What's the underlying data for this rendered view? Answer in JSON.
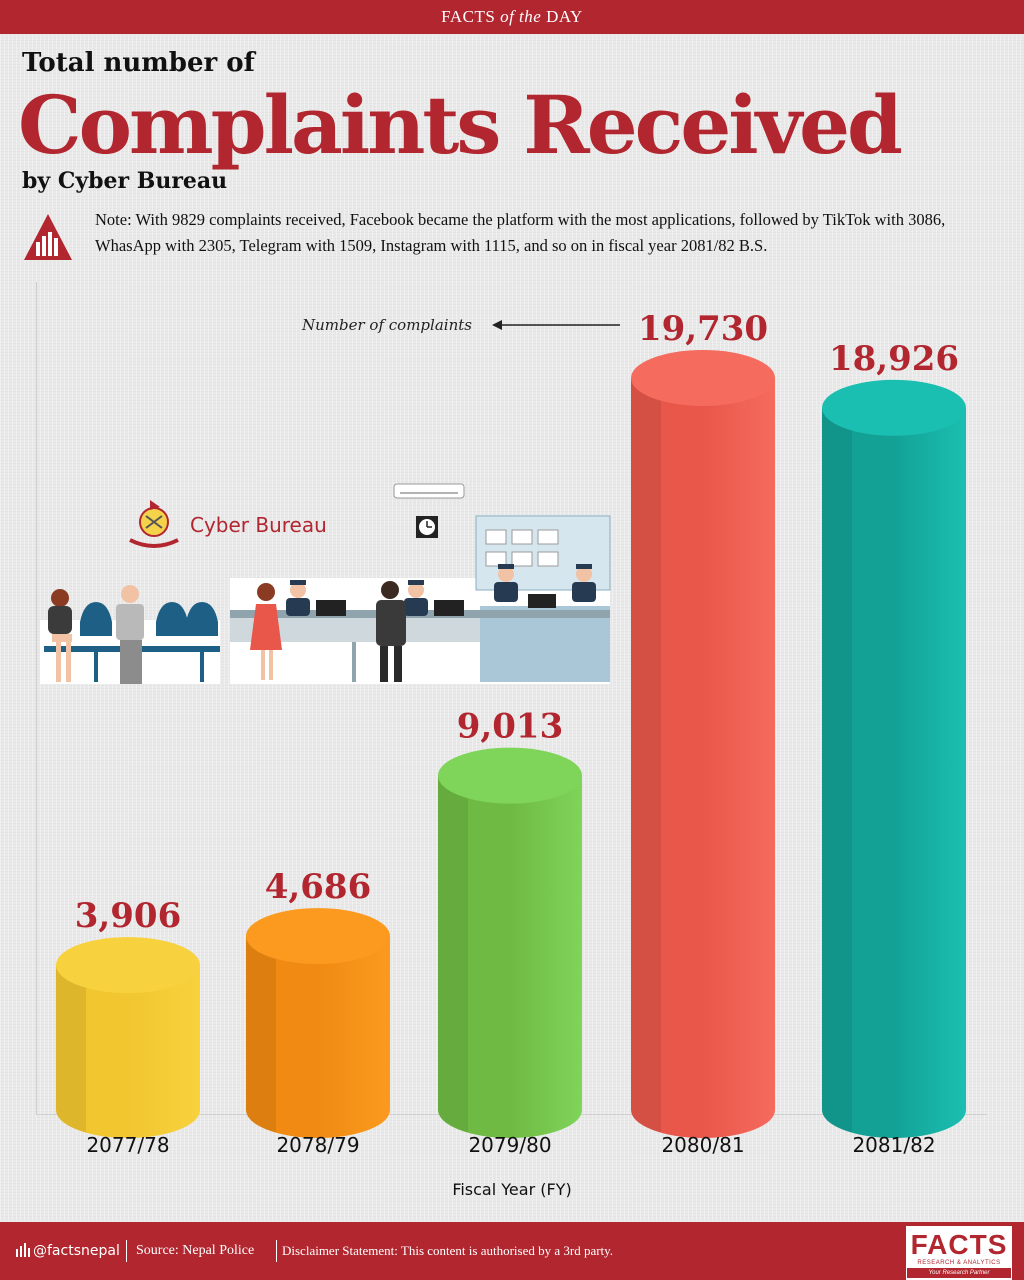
{
  "banner": {
    "prefix": "FACTS ",
    "italic": "of the",
    "suffix": " DAY"
  },
  "title": {
    "line1": "Total number of",
    "main": "Complaints Received",
    "line3": "by Cyber Bureau"
  },
  "note": "Note: With 9829 complaints received, Facebook became the platform with the most applications, followed by TikTok with 3086, WhasApp with 2305, Telegram with 1509, Instagram with 1115, and so on in fiscal year 2081/82 B.S.",
  "illustration": {
    "label": "Cyber Bureau"
  },
  "chart_data": {
    "type": "bar",
    "categories": [
      "2077/78",
      "2078/79",
      "2079/80",
      "2080/81",
      "2081/82"
    ],
    "values": [
      3906,
      4686,
      9013,
      19730,
      18926
    ],
    "value_labels": [
      "3,906",
      "4,686",
      "9,013",
      "19,730",
      "18,926"
    ],
    "bar_colors": [
      "#f1c62f",
      "#f08a12",
      "#6fba43",
      "#e8574a",
      "#13a195"
    ],
    "bar_top_colors": [
      "#f7d23e",
      "#fb9a1f",
      "#7fd45a",
      "#f56b5e",
      "#1bbfb2"
    ],
    "annotation": "Number of complaints",
    "xlabel": "Fiscal Year (FY)",
    "ylabel": "",
    "ylim": [
      0,
      20000
    ],
    "legend": "none",
    "grid": false
  },
  "footer": {
    "handle": "@factsnepal",
    "source": "Source: Nepal Police",
    "disclaimer": "Disclaimer Statement: This content is authorised by a 3rd party."
  },
  "logo": {
    "word": "FACTS",
    "line1": "RESEARCH & ANALYTICS",
    "line2": "Your Research Partner"
  },
  "colors": {
    "brand": "#b1262f",
    "text": "#111111"
  }
}
